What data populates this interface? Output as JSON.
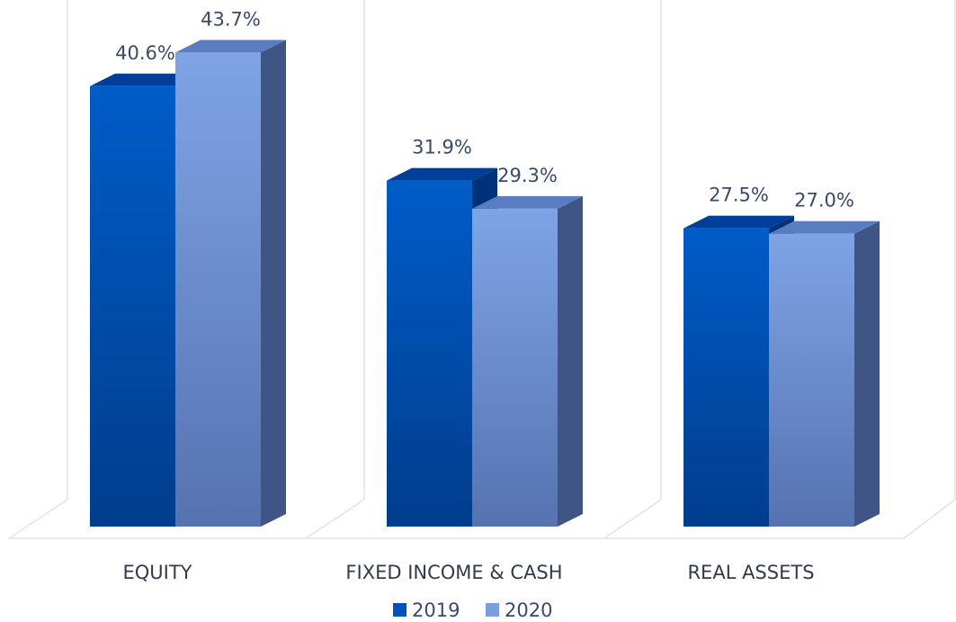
{
  "chart_data": {
    "type": "bar3d",
    "categories": [
      "EQUITY",
      "FIXED INCOME & CASH",
      "REAL ASSETS"
    ],
    "series": [
      {
        "name": "2019",
        "color": "#0052bd",
        "values": [
          40.6,
          31.9,
          27.5
        ],
        "value_labels": [
          "40.6%",
          "31.9%",
          "27.5%"
        ]
      },
      {
        "name": "2020",
        "color": "#7a9fe0",
        "values": [
          43.7,
          29.3,
          27.0
        ],
        "value_labels": [
          "43.7%",
          "29.3%",
          "27.0%"
        ]
      }
    ],
    "legend": "bottom"
  }
}
